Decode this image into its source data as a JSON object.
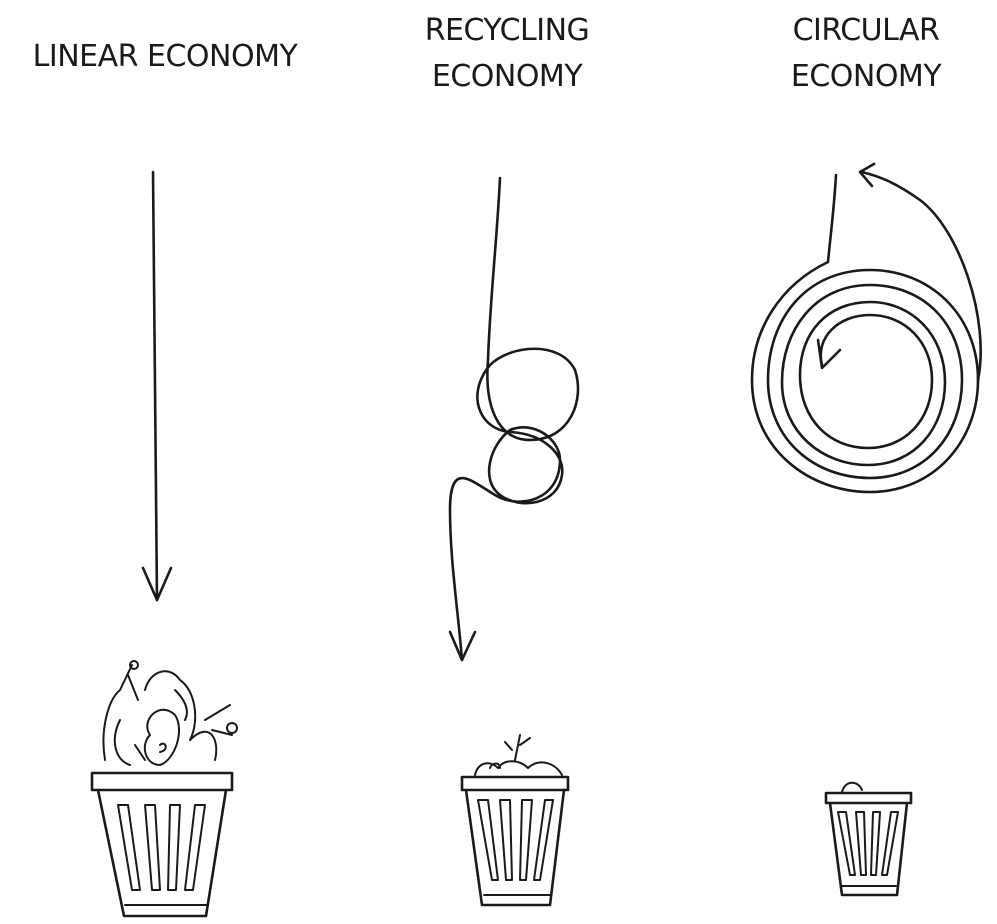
{
  "columns": [
    {
      "title_lines": [
        "LINEAR ECONOMY"
      ]
    },
    {
      "title_lines": [
        "RECYCLING",
        "ECONOMY"
      ]
    },
    {
      "title_lines": [
        "CIRCULAR",
        "ECONOMY"
      ]
    }
  ]
}
